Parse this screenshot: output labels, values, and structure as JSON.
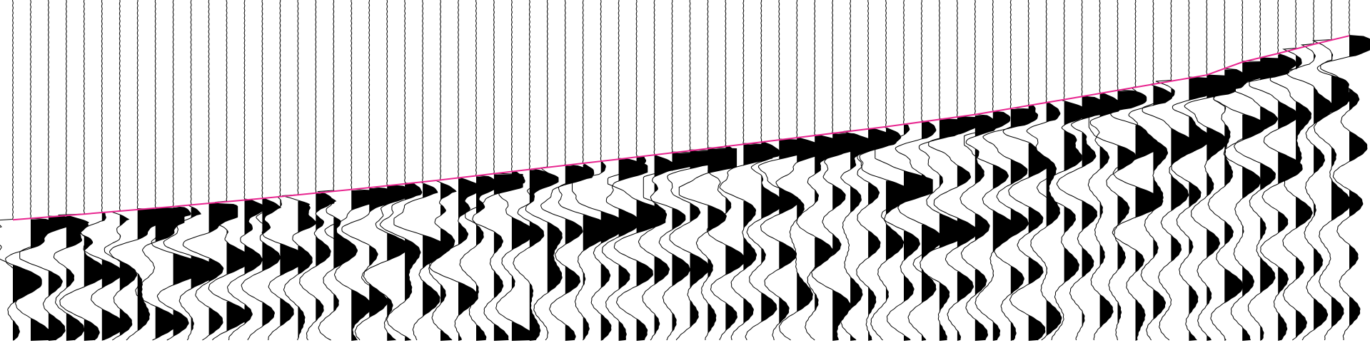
{
  "chart_data": {
    "type": "line",
    "plot_style": "seismic wiggle-trace variable-area (positive lobes filled black)",
    "title": "",
    "xlabel": "",
    "ylabel": "",
    "axes_visible": false,
    "grid": false,
    "legend": "none",
    "trace_count": 76,
    "xlim": [
      1,
      76
    ],
    "ylim_time_fraction": [
      0,
      1
    ],
    "y_axis_direction": "down",
    "trace_color": "#000000",
    "fill_color": "#000000",
    "series": [
      {
        "name": "",
        "color": "#e8258f",
        "points": [
          [
            1,
            0.645
          ],
          [
            5,
            0.628
          ],
          [
            10,
            0.606
          ],
          [
            15,
            0.582
          ],
          [
            20,
            0.556
          ],
          [
            25,
            0.528
          ],
          [
            30,
            0.497
          ],
          [
            35,
            0.467
          ],
          [
            40,
            0.436
          ],
          [
            45,
            0.404
          ],
          [
            50,
            0.372
          ],
          [
            55,
            0.336
          ],
          [
            60,
            0.292
          ],
          [
            65,
            0.247
          ],
          [
            68,
            0.22
          ],
          [
            70,
            0.182
          ],
          [
            72,
            0.157
          ],
          [
            74,
            0.13
          ],
          [
            76,
            0.105
          ]
        ]
      }
    ]
  }
}
